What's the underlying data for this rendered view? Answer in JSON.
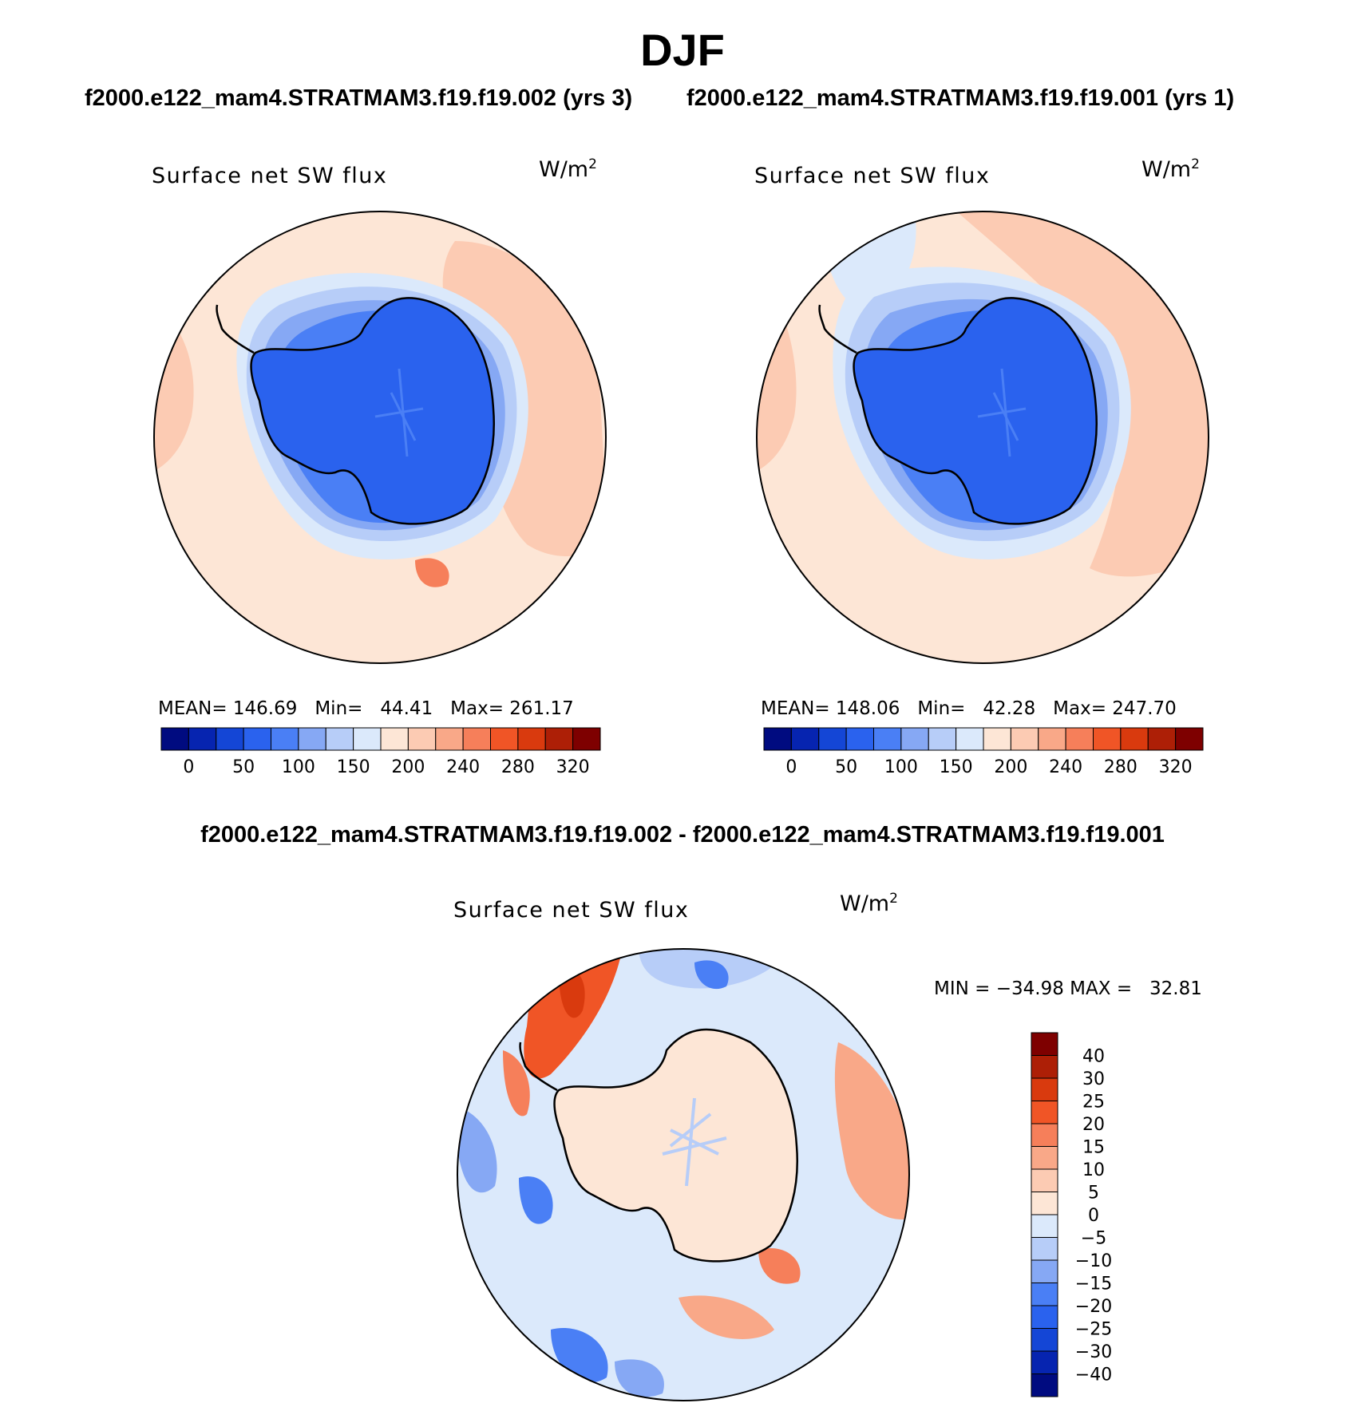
{
  "title": "DJF",
  "subtitles": {
    "left": "f2000.e122_mam4.STRATMAM3.f19.f19.002 (yrs 3)",
    "right": "f2000.e122_mam4.STRATMAM3.f19.f19.001 (yrs 1)",
    "diff": "f2000.e122_mam4.STRATMAM3.f19.f19.002 - f2000.e122_mam4.STRATMAM3.f19.f19.001"
  },
  "panels": [
    {
      "variable": "Surface net SW flux",
      "units": "W/m",
      "units_exp": "2",
      "stats": {
        "mean_label": "MEAN=",
        "mean": "146.69",
        "min_label": "Min=",
        "min": "44.41",
        "max_label": "Max=",
        "max": "261.17"
      }
    },
    {
      "variable": "Surface net SW flux",
      "units": "W/m",
      "units_exp": "2",
      "stats": {
        "mean_label": "MEAN=",
        "mean": "148.06",
        "min_label": "Min=",
        "min": "42.28",
        "max_label": "Max=",
        "max": "247.70"
      }
    },
    {
      "variable": "Surface net SW flux",
      "units": "W/m",
      "units_exp": "2",
      "stats": {
        "min_label": "MIN =",
        "min": "−34.98",
        "max_label": "MAX =",
        "max": "32.81"
      }
    }
  ],
  "colorbar_main": {
    "labels": [
      "0",
      "50",
      "100",
      "150",
      "200",
      "240",
      "280",
      "320"
    ],
    "colors": [
      "#000b80",
      "#0624b0",
      "#1446d6",
      "#2a62ee",
      "#4a7ff5",
      "#86a8f4",
      "#b7cdf8",
      "#dbe9fb",
      "#fde6d6",
      "#fccbb3",
      "#f9a888",
      "#f67f5a",
      "#f05526",
      "#d93a0e",
      "#ad1f06",
      "#7e0000"
    ]
  },
  "colorbar_diff": {
    "labels": [
      "40",
      "30",
      "25",
      "20",
      "15",
      "10",
      "5",
      "0",
      "−5",
      "−10",
      "−15",
      "−20",
      "−25",
      "−30",
      "−40"
    ],
    "colors": [
      "#7e0000",
      "#ad1f06",
      "#d93a0e",
      "#f05526",
      "#f67f5a",
      "#f9a888",
      "#fccbb3",
      "#fde6d6",
      "#dbe9fb",
      "#b7cdf8",
      "#86a8f4",
      "#4a7ff5",
      "#2a62ee",
      "#1446d6",
      "#0624b0",
      "#000b80"
    ]
  },
  "map_colors": {
    "ocean_warm": "#fde6d6",
    "ocean_warmer": "#fccbb3",
    "sea_ice_light": "#dbe9fb",
    "sea_ice_mid": "#b7cdf8",
    "sea_ice_dark": "#86a8f4",
    "ice_sheet": "#2a62ee",
    "ice_sheet_dark": "#1446d6",
    "diff_pos_strong": "#f05526",
    "diff_pos": "#f9a888",
    "diff_neg": "#4a7ff5"
  }
}
